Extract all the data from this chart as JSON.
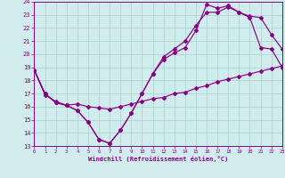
{
  "xlabel": "Windchill (Refroidissement éolien,°C)",
  "xlim": [
    0,
    23
  ],
  "ylim": [
    13,
    24
  ],
  "xticks": [
    0,
    1,
    2,
    3,
    4,
    5,
    6,
    7,
    8,
    9,
    10,
    11,
    12,
    13,
    14,
    15,
    16,
    17,
    18,
    19,
    20,
    21,
    22,
    23
  ],
  "yticks": [
    13,
    14,
    15,
    16,
    17,
    18,
    19,
    20,
    21,
    22,
    23,
    24
  ],
  "bg_color": "#d0ecec",
  "line_color": "#880088",
  "grid_color": "#a8d0d0",
  "line1_x": [
    0,
    1,
    2,
    3,
    4,
    5,
    6,
    7,
    8,
    9,
    10,
    11,
    12,
    13,
    14,
    15,
    16,
    17,
    18,
    19,
    20,
    21,
    22,
    23
  ],
  "line1_y": [
    18.8,
    17.0,
    16.3,
    16.1,
    15.7,
    14.8,
    13.5,
    13.2,
    14.2,
    15.5,
    17.0,
    18.5,
    19.6,
    20.1,
    20.5,
    21.8,
    23.8,
    23.5,
    23.7,
    23.2,
    22.8,
    20.5,
    20.4,
    19.0
  ],
  "line2_x": [
    0,
    1,
    2,
    3,
    4,
    5,
    6,
    7,
    8,
    9,
    10,
    11,
    12,
    13,
    14,
    15,
    16,
    17,
    18,
    19,
    20,
    21,
    22,
    23
  ],
  "line2_y": [
    18.8,
    17.0,
    16.3,
    16.1,
    15.7,
    14.8,
    13.5,
    13.2,
    14.2,
    15.5,
    17.0,
    18.5,
    19.8,
    20.4,
    21.0,
    22.2,
    23.2,
    23.2,
    23.6,
    23.2,
    22.9,
    22.8,
    21.5,
    20.4
  ],
  "line3_x": [
    0,
    1,
    2,
    3,
    4,
    5,
    6,
    7,
    8,
    9,
    10,
    11,
    12,
    13,
    14,
    15,
    16,
    17,
    18,
    19,
    20,
    21,
    22,
    23
  ],
  "line3_y": [
    18.8,
    16.9,
    16.4,
    16.1,
    16.2,
    16.0,
    15.9,
    15.8,
    16.0,
    16.2,
    16.4,
    16.6,
    16.7,
    17.0,
    17.1,
    17.4,
    17.6,
    17.9,
    18.1,
    18.3,
    18.5,
    18.7,
    18.9,
    19.1
  ]
}
